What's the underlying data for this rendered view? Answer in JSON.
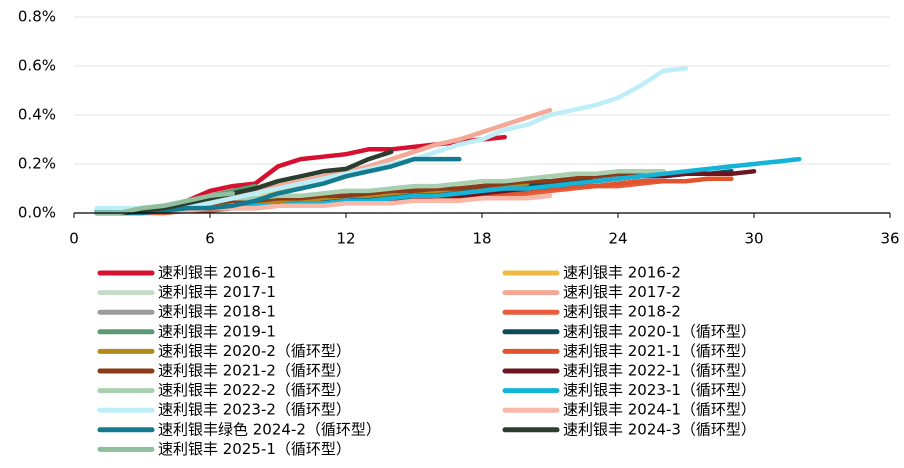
{
  "chart_data": {
    "type": "line",
    "x": [
      1,
      2,
      3,
      4,
      5,
      6,
      7,
      8,
      9,
      10,
      11,
      12,
      13,
      14,
      15,
      16,
      17,
      18,
      19,
      20,
      21,
      22,
      23,
      24,
      25,
      26,
      27,
      28,
      29,
      30,
      31,
      32
    ],
    "xlim": [
      0,
      36
    ],
    "xticks": [
      0,
      6,
      12,
      18,
      24,
      30,
      36
    ],
    "ylim": [
      0,
      0.8
    ],
    "yticks": [
      {
        "value": 0,
        "label": "0.0%"
      },
      {
        "value": 0.2,
        "label": "0.2%"
      },
      {
        "value": 0.4,
        "label": "0.4%"
      },
      {
        "value": 0.6,
        "label": "0.6%"
      },
      {
        "value": 0.8,
        "label": "0.8%"
      }
    ],
    "grid": true,
    "series": [
      {
        "name": "速利银丰 2016-1",
        "color": "#d7102f",
        "values": [
          0,
          0,
          0.01,
          0.02,
          0.05,
          0.09,
          0.11,
          0.12,
          0.19,
          0.22,
          0.23,
          0.24,
          0.26,
          0.26,
          0.27,
          0.28,
          0.29,
          0.3,
          0.31,
          null,
          null,
          null,
          null,
          null,
          null,
          null,
          null,
          null,
          null,
          null,
          null,
          null
        ]
      },
      {
        "name": "速利银丰 2016-2",
        "color": "#f0b942",
        "values": [
          0,
          0,
          0.01,
          0.02,
          0.04,
          0.06,
          0.07,
          0.08,
          0.09,
          0.1,
          null,
          null,
          null,
          null,
          null,
          null,
          null,
          null,
          null,
          null,
          null,
          null,
          null,
          null,
          null,
          null,
          null,
          null,
          null,
          null,
          null,
          null
        ]
      },
      {
        "name": "速利银丰 2017-1",
        "color": "#c5dcc8",
        "values": [
          0,
          0,
          0,
          0.01,
          0.01,
          0.02,
          0.02,
          0.03,
          0.03,
          0.03,
          0.04,
          0.04,
          0.04,
          0.05,
          0.05,
          0.05,
          0.06,
          0.06,
          0.06,
          0.07,
          0.07,
          null,
          null,
          null,
          null,
          null,
          null,
          null,
          null,
          null,
          null,
          null
        ]
      },
      {
        "name": "速利银丰 2017-2",
        "color": "#f4a896",
        "values": [
          0,
          0,
          0.01,
          0.02,
          0.03,
          0.05,
          0.07,
          0.09,
          0.11,
          0.13,
          0.15,
          0.17,
          0.19,
          0.22,
          0.25,
          0.28,
          0.3,
          0.33,
          0.36,
          0.39,
          0.42,
          null,
          null,
          null,
          null,
          null,
          null,
          null,
          null,
          null,
          null,
          null
        ]
      },
      {
        "name": "速利银丰 2018-1",
        "color": "#9b9b9b",
        "values": [
          0,
          0,
          0.01,
          0.01,
          0.02,
          0.03,
          0.03,
          0.04,
          0.04,
          0.05,
          0.05,
          0.06,
          0.07,
          0.07,
          0.08,
          0.09,
          0.09,
          0.1,
          0.11,
          0.12,
          0.13,
          0.14,
          0.14,
          0.15,
          null,
          null,
          null,
          null,
          null,
          null,
          null,
          null
        ]
      },
      {
        "name": "速利银丰 2018-2",
        "color": "#ea5c3c",
        "values": [
          0,
          0,
          0,
          0,
          0.01,
          0.01,
          0.02,
          0.02,
          0.03,
          0.03,
          0.03,
          0.04,
          0.04,
          0.05,
          0.05,
          0.06,
          0.06,
          0.07,
          0.07,
          0.08,
          0.09,
          0.1,
          0.11,
          0.11,
          0.12,
          0.13,
          0.13,
          0.14,
          0.14,
          null,
          null,
          null
        ]
      },
      {
        "name": "速利银丰 2019-1",
        "color": "#5b9a74",
        "values": [
          0,
          0,
          0.02,
          0.03,
          0.05,
          0.07,
          0.09,
          0.11,
          null,
          null,
          null,
          null,
          null,
          null,
          null,
          null,
          null,
          null,
          null,
          null,
          null,
          null,
          null,
          null,
          null,
          null,
          null,
          null,
          null,
          null,
          null,
          null
        ]
      },
      {
        "name": "速利银丰 2020-1（循环型）",
        "color": "#0d4a5a",
        "values": [
          0,
          0,
          0.01,
          0.01,
          0.02,
          0.02,
          0.03,
          0.03,
          0.04,
          0.04,
          0.05,
          0.05,
          0.06,
          0.07,
          0.07,
          0.08,
          0.09,
          0.09,
          0.1,
          0.11,
          0.12,
          0.13,
          0.13,
          0.14,
          0.15,
          0.15,
          0.16,
          0.16,
          0.17,
          null,
          null,
          null
        ]
      },
      {
        "name": "速利银丰 2020-2（循环型）",
        "color": "#b08a1a",
        "values": [
          0,
          0,
          0.01,
          0.01,
          0.02,
          0.03,
          0.03,
          0.04,
          0.05,
          0.05,
          0.06,
          0.07,
          0.07,
          0.08,
          0.09,
          0.09,
          0.1,
          0.11,
          0.11,
          0.12,
          null,
          null,
          null,
          null,
          null,
          null,
          null,
          null,
          null,
          null,
          null,
          null
        ]
      },
      {
        "name": "速利银丰 2021-1（循环型）",
        "color": "#e0542e",
        "values": [
          0,
          0,
          0,
          0.01,
          0.01,
          0.02,
          0.02,
          0.02,
          0.03,
          0.03,
          0.04,
          0.04,
          0.05,
          0.05,
          0.06,
          0.06,
          0.07,
          0.07,
          0.08,
          0.09,
          0.1,
          0.11,
          0.11,
          0.12,
          0.13,
          0.13,
          0.13,
          0.14,
          0.14,
          null,
          null,
          null
        ]
      },
      {
        "name": "速利银丰 2021-2（循环型）",
        "color": "#8b3a1a",
        "values": [
          0,
          0,
          0.01,
          0.02,
          0.03,
          0.04,
          0.05,
          0.05,
          0.06,
          0.06,
          0.07,
          0.07,
          0.08,
          0.09,
          0.09,
          0.1,
          0.1,
          0.11,
          0.12,
          0.13,
          0.13,
          0.14,
          0.15,
          0.16,
          0.16,
          0.17,
          null,
          null,
          null,
          null,
          null,
          null
        ]
      },
      {
        "name": "速利银丰 2022-1（循环型）",
        "color": "#6b1520",
        "values": [
          0,
          0,
          0.01,
          0.01,
          0.02,
          0.02,
          0.03,
          0.03,
          0.03,
          0.04,
          0.04,
          0.05,
          0.05,
          0.06,
          0.06,
          0.07,
          0.07,
          0.08,
          0.09,
          0.1,
          0.11,
          0.12,
          0.13,
          0.14,
          0.15,
          0.15,
          0.16,
          0.16,
          0.16,
          0.17,
          null,
          null
        ]
      },
      {
        "name": "速利银丰 2022-2（循环型）",
        "color": "#a8cfb0",
        "values": [
          0,
          0,
          0.02,
          0.03,
          0.04,
          0.05,
          0.06,
          0.06,
          0.07,
          0.07,
          0.08,
          0.09,
          0.09,
          0.1,
          0.11,
          0.11,
          0.12,
          0.13,
          0.13,
          0.14,
          0.15,
          0.16,
          0.16,
          0.17,
          0.17,
          0.17,
          null,
          null,
          null,
          null,
          null,
          null
        ]
      },
      {
        "name": "速利银丰 2023-1（循环型）",
        "color": "#14b4d8",
        "values": [
          0.01,
          0.01,
          0.01,
          0.01,
          0.02,
          0.02,
          0.02,
          0.03,
          0.03,
          0.04,
          0.04,
          0.05,
          0.05,
          0.06,
          0.07,
          0.07,
          0.08,
          0.09,
          0.1,
          0.1,
          0.11,
          0.12,
          0.13,
          0.14,
          0.15,
          0.16,
          0.17,
          0.18,
          0.19,
          0.2,
          0.21,
          0.22
        ]
      },
      {
        "name": "速利银丰 2023-2（循环型）",
        "color": "#bdeef8",
        "values": [
          0.02,
          0.02,
          0.02,
          0.02,
          0.03,
          0.04,
          0.06,
          0.08,
          0.1,
          0.12,
          0.14,
          0.16,
          0.18,
          0.2,
          0.22,
          0.25,
          0.28,
          0.3,
          0.34,
          0.36,
          0.4,
          0.42,
          0.44,
          0.47,
          0.52,
          0.58,
          0.59,
          null,
          null,
          null,
          null,
          null
        ]
      },
      {
        "name": "速利银丰 2024-1（循环型）",
        "color": "#f8b7a7",
        "values": [
          0,
          0,
          0,
          0.01,
          0.01,
          0.02,
          0.02,
          0.02,
          0.03,
          0.03,
          0.03,
          0.04,
          0.04,
          0.04,
          0.05,
          0.05,
          0.05,
          0.06,
          0.06,
          0.06,
          0.07,
          null,
          null,
          null,
          null,
          null,
          null,
          null,
          null,
          null,
          null,
          null
        ]
      },
      {
        "name": "速利银丰绿色 2024-2（循环型）",
        "color": "#137a8f",
        "values": [
          0,
          0,
          0,
          0.01,
          0.02,
          0.02,
          0.03,
          0.05,
          0.08,
          0.1,
          0.12,
          0.15,
          0.17,
          0.19,
          0.22,
          0.22,
          0.22,
          null,
          null,
          null,
          null,
          null,
          null,
          null,
          null,
          null,
          null,
          null,
          null,
          null,
          null,
          null
        ]
      },
      {
        "name": "速利银丰 2024-3（循环型）",
        "color": "#2a3d2e",
        "values": [
          0,
          0,
          0.01,
          0.02,
          0.04,
          0.06,
          0.08,
          0.1,
          0.13,
          0.15,
          0.17,
          0.18,
          0.22,
          0.25,
          null,
          null,
          null,
          null,
          null,
          null,
          null,
          null,
          null,
          null,
          null,
          null,
          null,
          null,
          null,
          null,
          null,
          null
        ]
      },
      {
        "name": "速利银丰 2025-1（循环型）",
        "color": "#8fbf9c",
        "values": [
          0,
          0,
          0.02,
          0.03,
          0.05,
          0.07,
          0.08,
          null,
          null,
          null,
          null,
          null,
          null,
          null,
          null,
          null,
          null,
          null,
          null,
          null,
          null,
          null,
          null,
          null,
          null,
          null,
          null,
          null,
          null,
          null,
          null,
          null
        ]
      }
    ]
  }
}
